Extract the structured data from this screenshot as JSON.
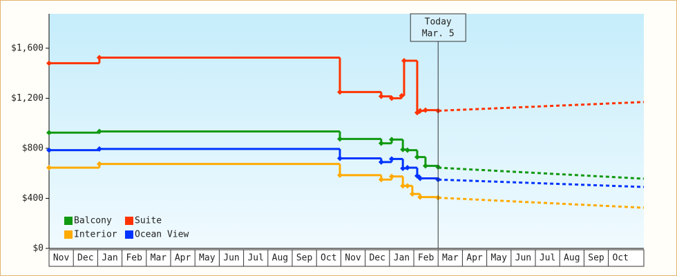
{
  "chart_data": {
    "type": "step-line",
    "categories": [
      "Nov",
      "Dec",
      "Jan",
      "Feb",
      "Mar",
      "Apr",
      "May",
      "Jun",
      "Jul",
      "Aug",
      "Sep",
      "Oct",
      "Nov",
      "Dec",
      "Jan",
      "Feb",
      "Mar",
      "Apr",
      "May",
      "Jun",
      "Jul",
      "Aug",
      "Sep",
      "Oct"
    ],
    "xlim": [
      0,
      24.46
    ],
    "ylim": [
      0,
      1875
    ],
    "yticks": [
      {
        "value": 0,
        "label": "$0"
      },
      {
        "value": 400,
        "label": "$400"
      },
      {
        "value": 800,
        "label": "$800"
      },
      {
        "value": 1200,
        "label": "$1,200"
      },
      {
        "value": 1600,
        "label": "$1,600"
      }
    ],
    "today": {
      "label": [
        "Today",
        "Mar. 5"
      ],
      "x": 16
    },
    "series": [
      {
        "name": "Balcony",
        "color": "#119911",
        "x": [
          0,
          2.07,
          11.96,
          13.66,
          14.09,
          14.55,
          14.74,
          15.14,
          15.48,
          16
        ],
        "values": [
          925,
          935,
          875,
          840,
          870,
          790,
          785,
          730,
          660,
          650
        ],
        "forecast": {
          "x": [
            16,
            24.46
          ],
          "values": [
            645,
            557
          ]
        }
      },
      {
        "name": "Suite",
        "color": "#ff3300",
        "x": [
          0,
          2.07,
          11.96,
          13.66,
          14.09,
          14.5,
          14.6,
          15.14,
          15.26,
          15.48,
          16
        ],
        "values": [
          1480,
          1525,
          1250,
          1215,
          1200,
          1220,
          1500,
          1085,
          1100,
          1105,
          1100
        ],
        "forecast": {
          "x": [
            16,
            24.46
          ],
          "values": [
            1100,
            1170
          ]
        }
      },
      {
        "name": "Interior",
        "color": "#ffaa00",
        "x": [
          0,
          2.07,
          11.96,
          13.66,
          14.09,
          14.55,
          14.74,
          14.94,
          15.26,
          16
        ],
        "values": [
          645,
          675,
          585,
          550,
          575,
          500,
          500,
          435,
          410,
          405
        ],
        "forecast": {
          "x": [
            16,
            24.46
          ],
          "values": [
            405,
            325
          ]
        }
      },
      {
        "name": "Ocean View",
        "color": "#0033ff",
        "x": [
          0,
          2.07,
          11.96,
          13.66,
          14.09,
          14.55,
          14.74,
          15.14,
          15.26,
          16
        ],
        "values": [
          785,
          795,
          720,
          690,
          715,
          640,
          645,
          580,
          560,
          550
        ],
        "forecast": {
          "x": [
            16,
            24.46
          ],
          "values": [
            550,
            491
          ]
        }
      }
    ]
  }
}
